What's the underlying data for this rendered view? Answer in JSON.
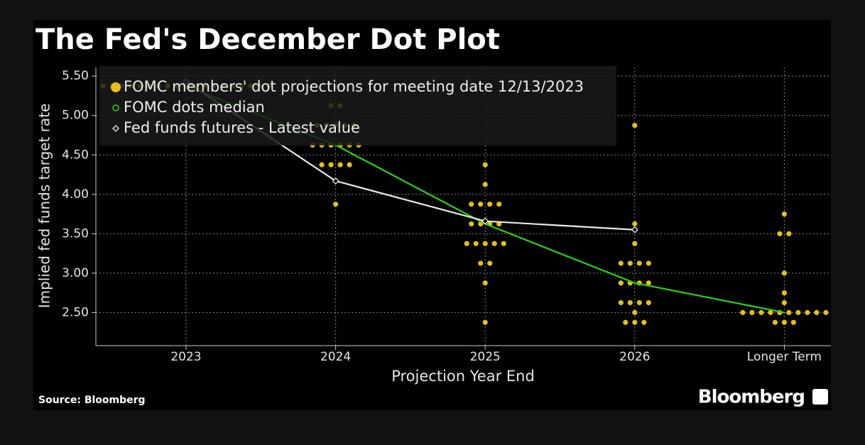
{
  "chart_data": {
    "type": "scatter",
    "title": "The Fed's December Dot Plot",
    "x_label": "Projection Year End",
    "y_label": "Implied fed funds target rate",
    "source": "Source: Bloomberg",
    "brand": "Bloomberg",
    "categories": [
      "2023",
      "2024",
      "2025",
      "2026",
      "Longer Term"
    ],
    "ylim": [
      2.08,
      5.61
    ],
    "yticks": [
      {
        "value": 2.5,
        "label": "2.50"
      },
      {
        "value": 3,
        "label": "3.00"
      },
      {
        "value": 3.5,
        "label": "3.50"
      },
      {
        "value": 4,
        "label": "4.00"
      },
      {
        "value": 4.5,
        "label": "4.50"
      },
      {
        "value": 5,
        "label": "5.00"
      },
      {
        "value": 5.5,
        "label": "5.50"
      }
    ],
    "grid": true,
    "legend": "upper left",
    "series": [
      {
        "name": "FOMC members' dot projections for meeting date 12/13/2023",
        "color": "#e3c01d",
        "kind": "dots",
        "x": [
          "2023",
          "2023",
          "2023",
          "2023",
          "2023",
          "2023",
          "2023",
          "2023",
          "2023",
          "2023",
          "2023",
          "2023",
          "2023",
          "2023",
          "2023",
          "2023",
          "2023",
          "2023",
          "2023",
          "2024",
          "2024",
          "2024",
          "2024",
          "2024",
          "2024",
          "2024",
          "2024",
          "2024",
          "2024",
          "2024",
          "2024",
          "2024",
          "2024",
          "2024",
          "2024",
          "2024",
          "2024",
          "2024",
          "2025",
          "2025",
          "2025",
          "2025",
          "2025",
          "2025",
          "2025",
          "2025",
          "2025",
          "2025",
          "2025",
          "2025",
          "2025",
          "2025",
          "2025",
          "2025",
          "2025",
          "2025",
          "2025",
          "2026",
          "2026",
          "2026",
          "2026",
          "2026",
          "2026",
          "2026",
          "2026",
          "2026",
          "2026",
          "2026",
          "2026",
          "2026",
          "2026",
          "2026",
          "2026",
          "2026",
          "2026",
          "2026",
          "Longer Term",
          "Longer Term",
          "Longer Term",
          "Longer Term",
          "Longer Term",
          "Longer Term",
          "Longer Term",
          "Longer Term",
          "Longer Term",
          "Longer Term",
          "Longer Term",
          "Longer Term",
          "Longer Term",
          "Longer Term",
          "Longer Term",
          "Longer Term",
          "Longer Term",
          "Longer Term",
          "Longer Term"
        ],
        "values": [
          5.375,
          5.375,
          5.375,
          5.375,
          5.375,
          5.375,
          5.375,
          5.375,
          5.375,
          5.375,
          5.375,
          5.375,
          5.375,
          5.375,
          5.375,
          5.375,
          5.375,
          5.375,
          5.375,
          5.375,
          5.125,
          5.125,
          4.875,
          4.875,
          4.875,
          4.875,
          4.875,
          4.625,
          4.625,
          4.625,
          4.625,
          4.625,
          4.625,
          4.375,
          4.375,
          4.375,
          4.375,
          3.875,
          4.375,
          4.125,
          3.875,
          3.875,
          3.875,
          3.875,
          3.625,
          3.625,
          3.625,
          3.625,
          3.375,
          3.375,
          3.375,
          3.375,
          3.375,
          3.125,
          3.125,
          2.875,
          2.375,
          4.875,
          3.625,
          3.375,
          3.125,
          3.125,
          3.125,
          3.125,
          2.875,
          2.875,
          2.875,
          2.875,
          2.625,
          2.625,
          2.625,
          2.625,
          2.5,
          2.375,
          2.375,
          2.375,
          3.75,
          3.5,
          3.5,
          3.0,
          2.75,
          2.625,
          2.5,
          2.5,
          2.5,
          2.5,
          2.5,
          2.5,
          2.5,
          2.5,
          2.5,
          2.5,
          2.375,
          2.375,
          2.375
        ]
      },
      {
        "name": "FOMC dots median",
        "color": "#2bd11a",
        "kind": "line",
        "values": [
          5.375,
          4.625,
          3.625,
          2.875,
          2.5
        ]
      },
      {
        "name": "Fed funds futures - Latest value",
        "color": "#e8e8e8",
        "kind": "line",
        "values": [
          5.43,
          4.17,
          3.66,
          3.55,
          null
        ]
      }
    ]
  }
}
